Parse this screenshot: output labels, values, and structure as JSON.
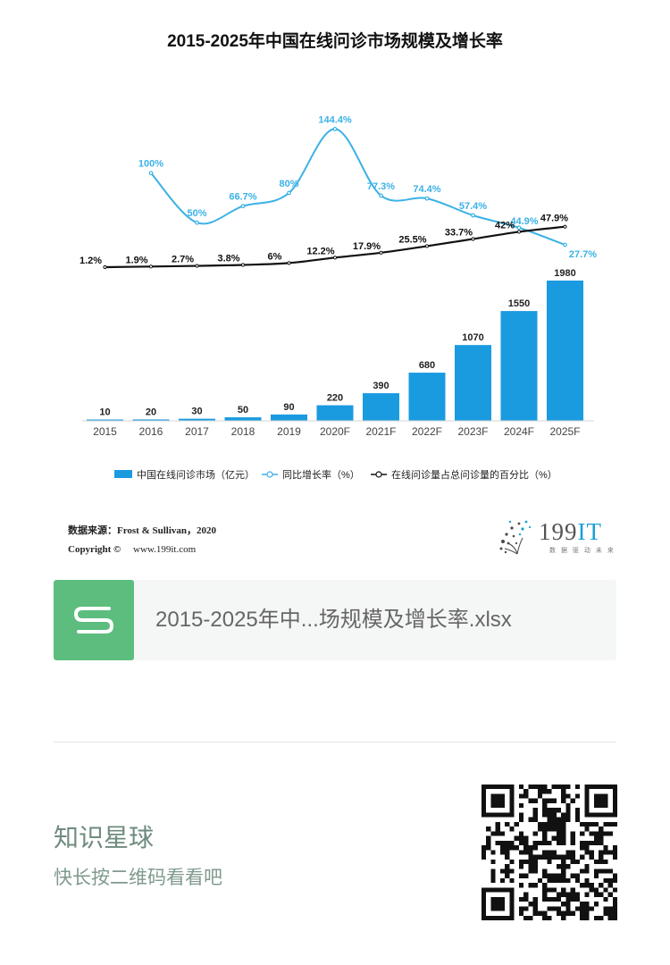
{
  "chart_data": {
    "type": "bar",
    "title": "2015-2025年中国在线问诊市场规模及增长率",
    "categories": [
      "2015",
      "2016",
      "2017",
      "2018",
      "2019",
      "2020F",
      "2021F",
      "2022F",
      "2023F",
      "2024F",
      "2025F"
    ],
    "series": [
      {
        "name": "中国在线问诊市场（亿元）",
        "type": "bar",
        "values": [
          10,
          20,
          30,
          50,
          90,
          220,
          390,
          680,
          1070,
          1550,
          1980
        ],
        "labels": [
          "10",
          "20",
          "30",
          "50",
          "90",
          "220",
          "390",
          "680",
          "1070",
          "1550",
          "1980"
        ],
        "color": "#1a9be0"
      },
      {
        "name": "同比增长率（%）",
        "type": "line",
        "values": [
          null,
          100,
          50,
          66.7,
          80,
          144.4,
          77.3,
          74.4,
          57.4,
          44.9,
          27.7
        ],
        "labels": [
          "",
          "100%",
          "50%",
          "66.7%",
          "80%",
          "144.4%",
          "77.3%",
          "74.4%",
          "57.4%",
          "44.9%",
          "27.7%"
        ],
        "color": "#3bb1e6"
      },
      {
        "name": "在线问诊量占总问诊量的百分比（%）",
        "type": "line",
        "values": [
          1.2,
          1.9,
          2.7,
          3.8,
          6,
          12.2,
          17.9,
          25.5,
          33.7,
          42,
          47.9
        ],
        "labels": [
          "1.2%",
          "1.9%",
          "2.7%",
          "3.8%",
          "6%",
          "12.2%",
          "17.9%",
          "25.5%",
          "33.7%",
          "42%",
          "47.9%"
        ],
        "color": "#111111"
      }
    ],
    "legend": [
      "中国在线问诊市场（亿元）",
      "同比增长率（%）",
      "在线问诊量占总问诊量的百分比（%）"
    ],
    "legend_position": "bottom"
  },
  "source": {
    "label": "数据来源：Frost & Sullivan，2020",
    "copyright": "Copyright ©",
    "url": "www.199it.com"
  },
  "logo": {
    "text_gray": "199",
    "text_blue": "IT",
    "subtitle": "数 据 驱 动 未 来"
  },
  "file": {
    "name": "2015-2025年中...场规模及增长率.xlsx",
    "icon": "spreadsheet-s-icon"
  },
  "promo": {
    "title": "知识星球",
    "subtitle": "快长按二维码看看吧"
  }
}
